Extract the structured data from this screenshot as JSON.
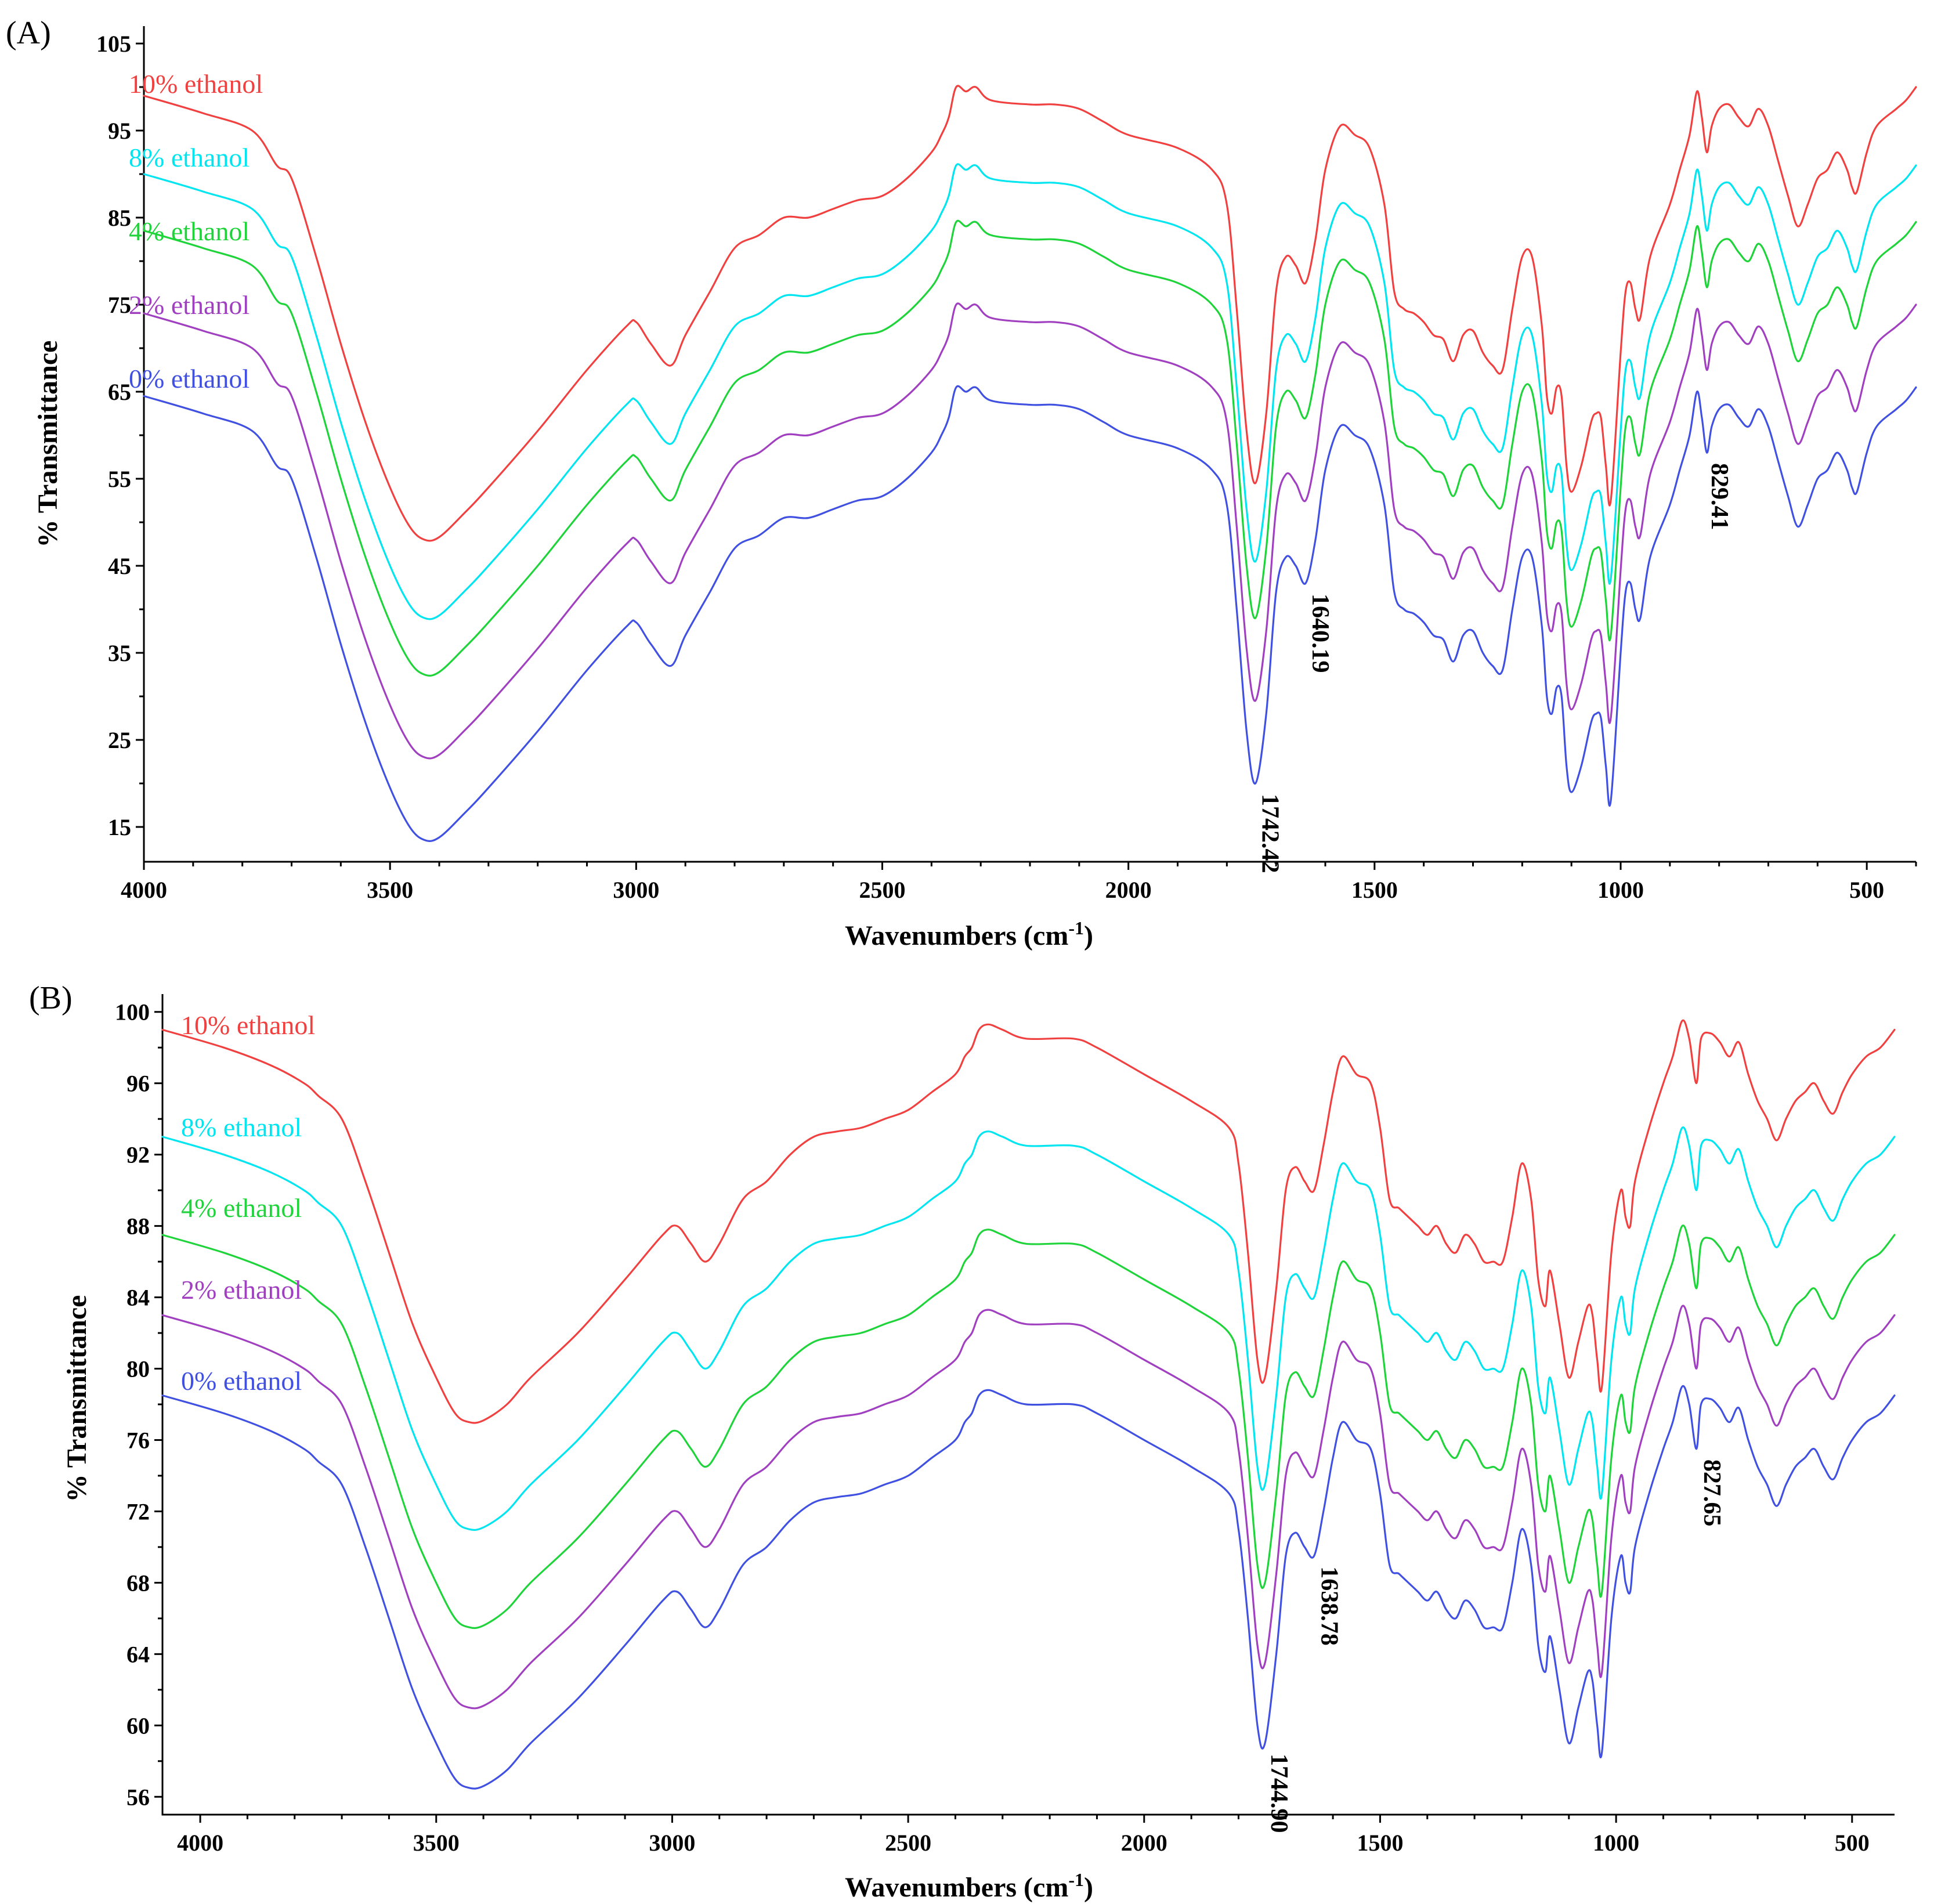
{
  "chart_data": [
    {
      "panel": "(A)",
      "type": "line",
      "xlabel": "Wavenumbers (cm-1)",
      "xlabel_base": "Wavenumbers (cm",
      "xlabel_sup": "-1",
      "xlabel_close": ")",
      "ylabel": "% Transmittance",
      "xlim": [
        4000,
        400
      ],
      "ylim": [
        11,
        107
      ],
      "xticks": [
        4000,
        3500,
        3000,
        2500,
        2000,
        1500,
        1000,
        500
      ],
      "yticks": [
        15,
        25,
        35,
        45,
        55,
        65,
        75,
        85,
        95,
        105
      ],
      "grid": false,
      "series": [
        {
          "name": "10% ethanol",
          "color": "#f04040",
          "offset": 34.5
        },
        {
          "name": "8% ethanol",
          "color": "#00e5f0",
          "offset": 25.5
        },
        {
          "name": "4% ethanol",
          "color": "#1fd43a",
          "offset": 19
        },
        {
          "name": "2% ethanol",
          "color": "#a040c0",
          "offset": 9.5
        },
        {
          "name": "0% ethanol",
          "color": "#4050e0",
          "offset": 0
        }
      ],
      "base_profile": [
        [
          4000,
          64.5
        ],
        [
          3880,
          62.5
        ],
        [
          3780,
          60.5
        ],
        [
          3730,
          56.5
        ],
        [
          3700,
          55
        ],
        [
          3650,
          46
        ],
        [
          3600,
          36
        ],
        [
          3550,
          27
        ],
        [
          3500,
          19.5
        ],
        [
          3460,
          15
        ],
        [
          3430,
          13.5
        ],
        [
          3400,
          13.8
        ],
        [
          3350,
          16.5
        ],
        [
          3300,
          19.5
        ],
        [
          3200,
          26
        ],
        [
          3100,
          33
        ],
        [
          3020,
          38
        ],
        [
          3000,
          38.5
        ],
        [
          2970,
          36
        ],
        [
          2930,
          33.5
        ],
        [
          2900,
          37
        ],
        [
          2850,
          42
        ],
        [
          2800,
          47
        ],
        [
          2750,
          48.5
        ],
        [
          2700,
          50.5
        ],
        [
          2650,
          50.5
        ],
        [
          2600,
          51.5
        ],
        [
          2550,
          52.5
        ],
        [
          2500,
          53
        ],
        [
          2450,
          55
        ],
        [
          2400,
          58
        ],
        [
          2380,
          60
        ],
        [
          2365,
          62
        ],
        [
          2350,
          65.5
        ],
        [
          2330,
          65
        ],
        [
          2310,
          65.5
        ],
        [
          2280,
          64
        ],
        [
          2200,
          63.5
        ],
        [
          2150,
          63.5
        ],
        [
          2100,
          63
        ],
        [
          2050,
          61.5
        ],
        [
          2000,
          60
        ],
        [
          1900,
          58.5
        ],
        [
          1830,
          56
        ],
        [
          1800,
          52
        ],
        [
          1780,
          40
        ],
        [
          1760,
          26
        ],
        [
          1742,
          20
        ],
        [
          1720,
          28
        ],
        [
          1700,
          42
        ],
        [
          1680,
          46
        ],
        [
          1660,
          45
        ],
        [
          1640,
          43
        ],
        [
          1620,
          48
        ],
        [
          1600,
          56
        ],
        [
          1570,
          61
        ],
        [
          1540,
          60
        ],
        [
          1510,
          58.5
        ],
        [
          1480,
          52
        ],
        [
          1460,
          42
        ],
        [
          1440,
          40
        ],
        [
          1420,
          39.5
        ],
        [
          1400,
          38.5
        ],
        [
          1380,
          37
        ],
        [
          1360,
          36.5
        ],
        [
          1340,
          34
        ],
        [
          1320,
          37
        ],
        [
          1300,
          37.5
        ],
        [
          1280,
          35
        ],
        [
          1260,
          33.5
        ],
        [
          1240,
          33
        ],
        [
          1220,
          40
        ],
        [
          1200,
          46
        ],
        [
          1180,
          46
        ],
        [
          1160,
          38
        ],
        [
          1150,
          30
        ],
        [
          1140,
          28
        ],
        [
          1130,
          31
        ],
        [
          1120,
          30
        ],
        [
          1110,
          22
        ],
        [
          1100,
          19
        ],
        [
          1080,
          22
        ],
        [
          1060,
          27
        ],
        [
          1050,
          28
        ],
        [
          1040,
          27.5
        ],
        [
          1030,
          22
        ],
        [
          1020,
          18
        ],
        [
          1000,
          35
        ],
        [
          990,
          42
        ],
        [
          980,
          43
        ],
        [
          970,
          40
        ],
        [
          960,
          39
        ],
        [
          940,
          46
        ],
        [
          900,
          52
        ],
        [
          880,
          56
        ],
        [
          860,
          60
        ],
        [
          845,
          65
        ],
        [
          835,
          62
        ],
        [
          825,
          58
        ],
        [
          815,
          61
        ],
        [
          800,
          63
        ],
        [
          780,
          63.5
        ],
        [
          760,
          62
        ],
        [
          740,
          61
        ],
        [
          720,
          63
        ],
        [
          700,
          61
        ],
        [
          680,
          57
        ],
        [
          660,
          53
        ],
        [
          640,
          49.5
        ],
        [
          620,
          52
        ],
        [
          600,
          55
        ],
        [
          580,
          56
        ],
        [
          560,
          58
        ],
        [
          540,
          56
        ],
        [
          530,
          54
        ],
        [
          520,
          53.5
        ],
        [
          500,
          58
        ],
        [
          480,
          61
        ],
        [
          440,
          63
        ],
        [
          420,
          64
        ],
        [
          400,
          65.5
        ]
      ],
      "annotations": [
        {
          "text": "1742.42",
          "x": 1742,
          "y": 20,
          "dir": "down"
        },
        {
          "text": "1640.19",
          "x": 1640,
          "y": 43,
          "dir": "down"
        },
        {
          "text": "829.41",
          "x": 829,
          "y": 58,
          "dir": "down"
        }
      ]
    },
    {
      "panel": "(B)",
      "type": "line",
      "xlabel": "Wavenumbers (cm-1)",
      "xlabel_base": "Wavenumbers (cm",
      "xlabel_sup": "-1",
      "xlabel_close": ")",
      "ylabel": "% Transmittance",
      "xlim": [
        4080,
        410
      ],
      "ylim": [
        55,
        101
      ],
      "xticks": [
        4000,
        3500,
        3000,
        2500,
        2000,
        1500,
        1000,
        500
      ],
      "yticks": [
        56,
        60,
        64,
        68,
        72,
        76,
        80,
        84,
        88,
        92,
        96,
        100
      ],
      "grid": false,
      "series": [
        {
          "name": "10% ethanol",
          "color": "#f04040",
          "offset": 20.5
        },
        {
          "name": "8% ethanol",
          "color": "#00e5f0",
          "offset": 14.5
        },
        {
          "name": "4% ethanol",
          "color": "#1fd43a",
          "offset": 9
        },
        {
          "name": "2% ethanol",
          "color": "#a040c0",
          "offset": 4.5
        },
        {
          "name": "0% ethanol",
          "color": "#4050e0",
          "offset": 0
        }
      ],
      "base_profile": [
        [
          4080,
          78.5
        ],
        [
          3950,
          77.5
        ],
        [
          3850,
          76.5
        ],
        [
          3780,
          75.5
        ],
        [
          3750,
          74.8
        ],
        [
          3700,
          73.5
        ],
        [
          3650,
          70
        ],
        [
          3600,
          66
        ],
        [
          3550,
          62
        ],
        [
          3500,
          59
        ],
        [
          3460,
          57
        ],
        [
          3430,
          56.5
        ],
        [
          3400,
          56.6
        ],
        [
          3350,
          57.5
        ],
        [
          3300,
          59
        ],
        [
          3200,
          61.5
        ],
        [
          3100,
          64.5
        ],
        [
          3020,
          67
        ],
        [
          2990,
          67.5
        ],
        [
          2960,
          66.5
        ],
        [
          2930,
          65.5
        ],
        [
          2900,
          66.5
        ],
        [
          2850,
          69
        ],
        [
          2800,
          70
        ],
        [
          2750,
          71.5
        ],
        [
          2700,
          72.5
        ],
        [
          2650,
          72.8
        ],
        [
          2600,
          73
        ],
        [
          2550,
          73.5
        ],
        [
          2500,
          74
        ],
        [
          2450,
          75
        ],
        [
          2400,
          76
        ],
        [
          2380,
          77
        ],
        [
          2365,
          77.5
        ],
        [
          2350,
          78.5
        ],
        [
          2330,
          78.8
        ],
        [
          2300,
          78.5
        ],
        [
          2250,
          78
        ],
        [
          2150,
          78
        ],
        [
          2100,
          77.5
        ],
        [
          2000,
          76
        ],
        [
          1900,
          74.5
        ],
        [
          1820,
          73
        ],
        [
          1800,
          71
        ],
        [
          1780,
          66
        ],
        [
          1760,
          60
        ],
        [
          1744,
          59
        ],
        [
          1720,
          64
        ],
        [
          1700,
          69.5
        ],
        [
          1680,
          70.8
        ],
        [
          1660,
          70
        ],
        [
          1640,
          69.5
        ],
        [
          1620,
          72
        ],
        [
          1600,
          75
        ],
        [
          1580,
          77
        ],
        [
          1550,
          76
        ],
        [
          1520,
          75.5
        ],
        [
          1500,
          73
        ],
        [
          1480,
          69
        ],
        [
          1460,
          68.5
        ],
        [
          1440,
          68
        ],
        [
          1420,
          67.5
        ],
        [
          1400,
          67
        ],
        [
          1380,
          67.5
        ],
        [
          1360,
          66.5
        ],
        [
          1340,
          66
        ],
        [
          1320,
          67
        ],
        [
          1300,
          66.5
        ],
        [
          1280,
          65.5
        ],
        [
          1260,
          65.5
        ],
        [
          1240,
          65.5
        ],
        [
          1220,
          68
        ],
        [
          1200,
          71
        ],
        [
          1180,
          69
        ],
        [
          1165,
          64.5
        ],
        [
          1150,
          63
        ],
        [
          1140,
          65
        ],
        [
          1120,
          62
        ],
        [
          1100,
          59
        ],
        [
          1080,
          61
        ],
        [
          1060,
          63
        ],
        [
          1050,
          62.5
        ],
        [
          1040,
          60
        ],
        [
          1030,
          58.5
        ],
        [
          1010,
          66
        ],
        [
          990,
          69.5
        ],
        [
          980,
          68
        ],
        [
          970,
          67.5
        ],
        [
          960,
          70
        ],
        [
          930,
          73
        ],
        [
          900,
          75.5
        ],
        [
          880,
          77
        ],
        [
          860,
          79
        ],
        [
          845,
          78
        ],
        [
          830,
          75.5
        ],
        [
          820,
          78
        ],
        [
          800,
          78.3
        ],
        [
          780,
          77.8
        ],
        [
          760,
          77
        ],
        [
          740,
          77.8
        ],
        [
          720,
          76
        ],
        [
          700,
          74.5
        ],
        [
          680,
          73.5
        ],
        [
          660,
          72.3
        ],
        [
          640,
          73.5
        ],
        [
          620,
          74.5
        ],
        [
          600,
          75
        ],
        [
          580,
          75.5
        ],
        [
          560,
          74.5
        ],
        [
          540,
          73.8
        ],
        [
          520,
          75
        ],
        [
          500,
          76
        ],
        [
          470,
          77
        ],
        [
          440,
          77.5
        ],
        [
          410,
          78.5
        ]
      ],
      "annotations": [
        {
          "text": "1744.90",
          "x": 1745,
          "y": 59,
          "dir": "down"
        },
        {
          "text": "1638.78",
          "x": 1639,
          "y": 69.5,
          "dir": "down"
        },
        {
          "text": "827.65",
          "x": 828,
          "y": 75.5,
          "dir": "down"
        }
      ]
    }
  ]
}
